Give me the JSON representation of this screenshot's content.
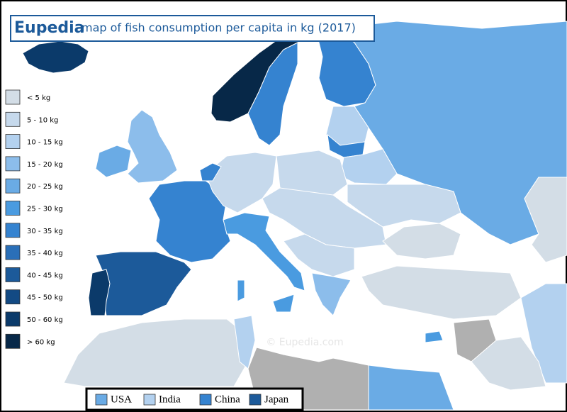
{
  "header": {
    "brand": "Eupedia",
    "title": "map of fish consumption per capita in kg (2017)"
  },
  "legend": {
    "items": [
      {
        "label": "< 5 kg",
        "color": "#d3dde6"
      },
      {
        "label": "5 - 10 kg",
        "color": "#c6d9ec"
      },
      {
        "label": "10 - 15 kg",
        "color": "#b3d1ef"
      },
      {
        "label": "15 - 20 kg",
        "color": "#8cbdeb"
      },
      {
        "label": "20 - 25 kg",
        "color": "#6aabe5"
      },
      {
        "label": "25 - 30 kg",
        "color": "#4a9be0"
      },
      {
        "label": "30 - 35 kg",
        "color": "#3583d0"
      },
      {
        "label": "35 - 40 kg",
        "color": "#2a6fb8"
      },
      {
        "label": "40 - 45 kg",
        "color": "#1c5a9a"
      },
      {
        "label": "45 - 50 kg",
        "color": "#134a84"
      },
      {
        "label": "50 - 60 kg",
        "color": "#0b3a6a"
      },
      {
        "label": "> 60 kg",
        "color": "#072848"
      }
    ]
  },
  "comparison": {
    "items": [
      {
        "label": "USA",
        "color": "#6aabe5"
      },
      {
        "label": "India",
        "color": "#b3d1ef"
      },
      {
        "label": "China",
        "color": "#3583d0"
      },
      {
        "label": "Japan",
        "color": "#1c5a9a"
      }
    ]
  },
  "watermark": "© Eupedia.com"
}
